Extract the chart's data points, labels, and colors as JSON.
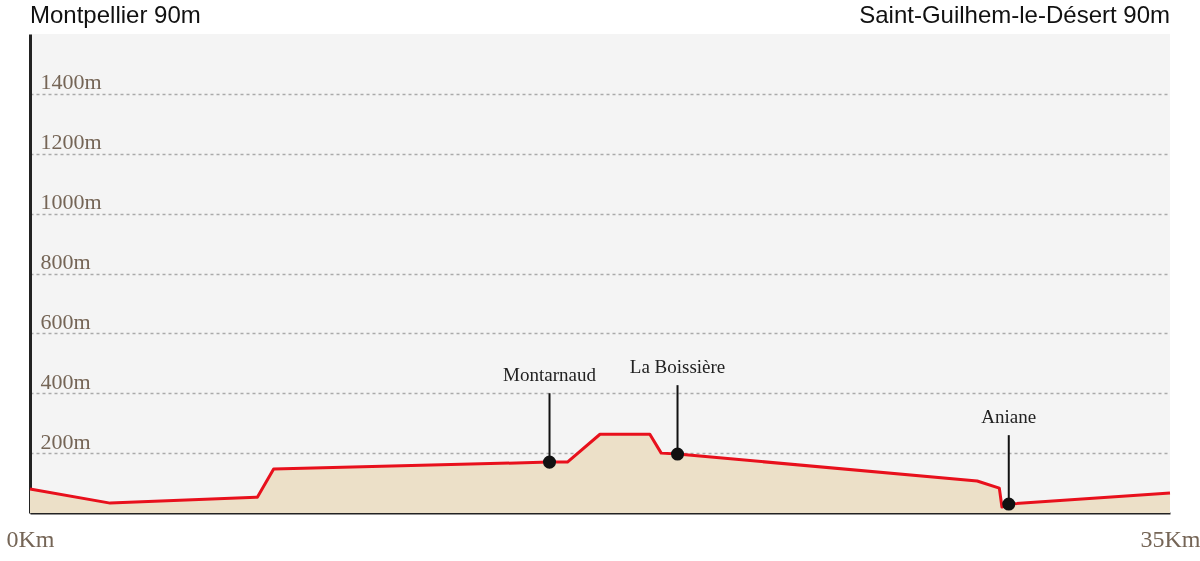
{
  "chart_data": {
    "type": "area",
    "x": [
      0,
      2.46,
      6.98,
      7.48,
      15.95,
      16.5,
      17.5,
      19.03,
      19.38,
      19.88,
      29.08,
      29.76,
      29.84,
      30.05,
      35
    ],
    "series": [
      {
        "color": "#e8101c",
        "values": [
          80,
          33,
          53,
          147,
          170,
          170,
          263,
          263,
          200,
          197,
          107,
          83,
          20,
          30,
          67
        ]
      }
    ],
    "xlim": [
      0,
      35
    ],
    "xticks": [
      {
        "value": 0,
        "label": "0Km"
      },
      {
        "value": 35,
        "label": "35Km"
      }
    ],
    "ylim": [
      0,
      1600
    ],
    "yticks": [
      {
        "value": 200,
        "label": "200m"
      },
      {
        "value": 400,
        "label": "400m"
      },
      {
        "value": 600,
        "label": "600m"
      },
      {
        "value": 800,
        "label": "800m"
      },
      {
        "value": 1000,
        "label": "1000m"
      },
      {
        "value": 1200,
        "label": "1200m"
      },
      {
        "value": 1400,
        "label": "1400m"
      }
    ],
    "grid": "y",
    "annotations": [
      "Montpellier 90m",
      "Saint-Guilhem-le-Désert 90m",
      {
        "text": "Montarnaud",
        "x": 15.95,
        "y": 170
      },
      {
        "text": "La Boissière",
        "x": 19.88,
        "y": 197
      },
      {
        "text": "Aniane",
        "x": 30.05,
        "y": 30
      }
    ]
  }
}
